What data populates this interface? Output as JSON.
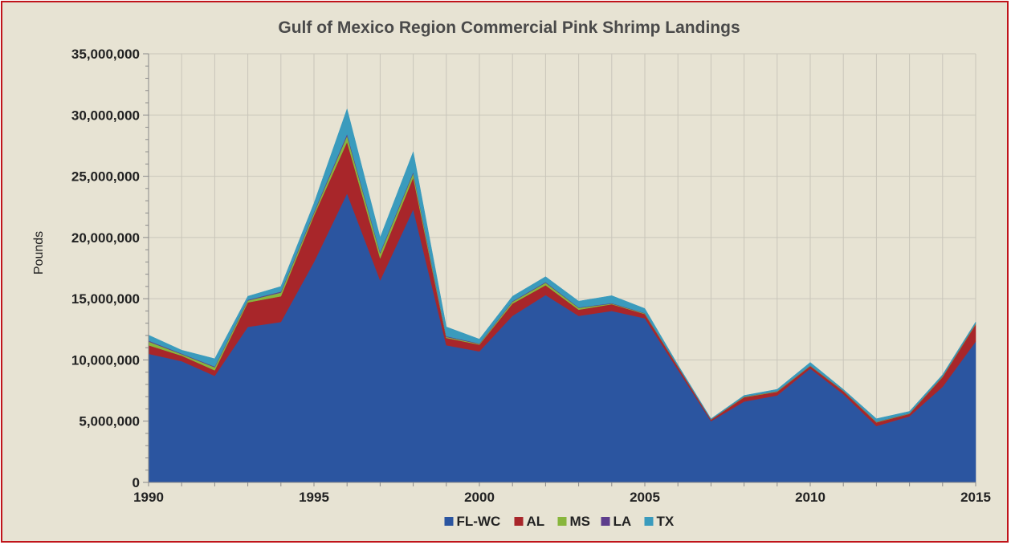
{
  "chart_data": {
    "type": "area",
    "stacked": true,
    "title": "Gulf of Mexico Region Commercial Pink Shrimp Landings",
    "xlabel": "",
    "ylabel": "Pounds",
    "xlim": [
      1990,
      2015
    ],
    "ylim": [
      0,
      35000000
    ],
    "y_ticks": [
      0,
      5000000,
      10000000,
      15000000,
      20000000,
      25000000,
      30000000,
      35000000
    ],
    "y_tick_labels": [
      "0",
      "5,000,000",
      "10,000,000",
      "15,000,000",
      "20,000,000",
      "25,000,000",
      "30,000,000",
      "35,000,000"
    ],
    "x_tick_labels": [
      "1990",
      "1995",
      "2000",
      "2005",
      "2010",
      "2015"
    ],
    "grid": true,
    "legend_position": "bottom",
    "x": [
      1990,
      1991,
      1992,
      1993,
      1994,
      1995,
      1996,
      1997,
      1998,
      1999,
      2000,
      2001,
      2002,
      2003,
      2004,
      2005,
      2006,
      2007,
      2008,
      2009,
      2010,
      2011,
      2012,
      2013,
      2014,
      2015
    ],
    "series": [
      {
        "name": "FL-WC",
        "color": "#2b55a0",
        "values": [
          10500000,
          9900000,
          8700000,
          12700000,
          13100000,
          18000000,
          23600000,
          16500000,
          22300000,
          11200000,
          10700000,
          13600000,
          15300000,
          13600000,
          14000000,
          13400000,
          9200000,
          5000000,
          6600000,
          7100000,
          9300000,
          7200000,
          4600000,
          5400000,
          7800000,
          11500000
        ]
      },
      {
        "name": "AL",
        "color": "#a8262a",
        "values": [
          700000,
          450000,
          450000,
          2000000,
          2100000,
          3800000,
          4200000,
          1800000,
          2600000,
          600000,
          550000,
          1000000,
          800000,
          500000,
          550000,
          350000,
          250000,
          120000,
          350000,
          300000,
          200000,
          250000,
          300000,
          200000,
          800000,
          1400000
        ]
      },
      {
        "name": "MS",
        "color": "#88b63c",
        "values": [
          300000,
          120000,
          250000,
          150000,
          300000,
          200000,
          500000,
          400000,
          350000,
          80000,
          60000,
          150000,
          200000,
          150000,
          50000,
          50000,
          30000,
          20000,
          40000,
          40000,
          30000,
          30000,
          40000,
          30000,
          50000,
          60000
        ]
      },
      {
        "name": "LA",
        "color": "#5d3d8c",
        "values": [
          80000,
          50000,
          60000,
          60000,
          80000,
          100000,
          150000,
          100000,
          100000,
          60000,
          40000,
          50000,
          60000,
          40000,
          40000,
          30000,
          20000,
          10000,
          20000,
          20000,
          20000,
          20000,
          20000,
          20000,
          30000,
          30000
        ]
      },
      {
        "name": "TX",
        "color": "#3a9bbd",
        "values": [
          450000,
          280000,
          640000,
          290000,
          420000,
          700000,
          2050000,
          1200000,
          1650000,
          760000,
          350000,
          400000,
          440000,
          510000,
          610000,
          370000,
          100000,
          50000,
          90000,
          140000,
          250000,
          100000,
          240000,
          150000,
          120000,
          110000
        ]
      }
    ]
  }
}
